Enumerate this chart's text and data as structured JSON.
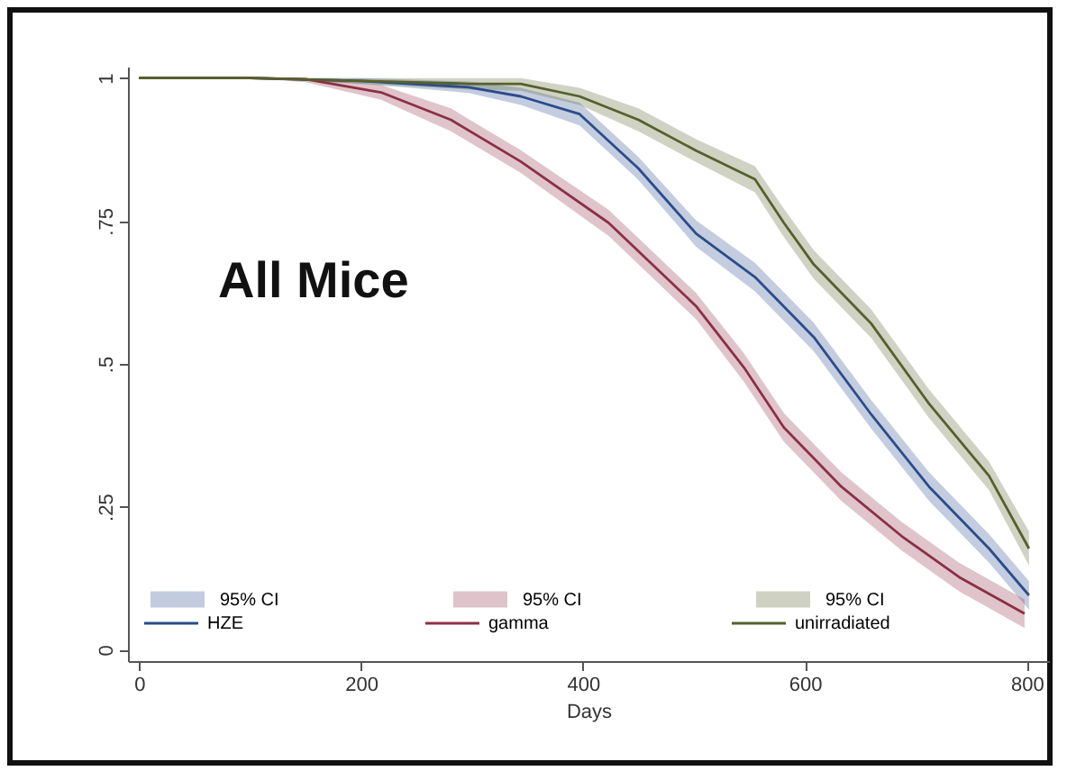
{
  "chart_data": {
    "type": "line",
    "title": "All Mice",
    "xlabel": "Days",
    "annotations": [
      "95% CI",
      "95% CI",
      "95% CI"
    ],
    "xlim": [
      -10,
      820
    ],
    "xticks": [
      0,
      200,
      400,
      600,
      800
    ],
    "ylim": [
      -0.02,
      1.02
    ],
    "yticks": [
      0,
      {
        "value": 0.25,
        "label": ".25"
      },
      {
        "value": 0.5,
        "label": ".5"
      },
      {
        "value": 0.75,
        "label": ".75"
      },
      1
    ],
    "grid": false,
    "legend": "bottom",
    "series": [
      {
        "name": "HZE",
        "color": "#2b4c8c",
        "x": [
          0,
          100,
          200,
          297,
          344,
          397,
          450,
          502,
          555,
          608,
          660,
          712,
          766,
          802
        ],
        "values": [
          1,
          1,
          0.995,
          0.984,
          0.968,
          0.937,
          0.842,
          0.728,
          0.652,
          0.547,
          0.411,
          0.285,
          0.177,
          0.095
        ],
        "lower": [
          1,
          1,
          0.99,
          0.974,
          0.953,
          0.917,
          0.822,
          0.705,
          0.627,
          0.522,
          0.386,
          0.26,
          0.152,
          0.07
        ],
        "upper": [
          1,
          1,
          1,
          0.994,
          0.983,
          0.957,
          0.862,
          0.751,
          0.677,
          0.572,
          0.436,
          0.31,
          0.202,
          0.12
        ]
      },
      {
        "name": "gamma",
        "color": "#8c2f45",
        "x": [
          0,
          100,
          150,
          218,
          281,
          344,
          423,
          502,
          545,
          581,
          633,
          687,
          739,
          798
        ],
        "values": [
          1,
          1,
          0.998,
          0.975,
          0.927,
          0.854,
          0.747,
          0.601,
          0.494,
          0.389,
          0.285,
          0.199,
          0.127,
          0.063
        ],
        "lower": [
          1,
          1,
          0.993,
          0.962,
          0.907,
          0.834,
          0.724,
          0.578,
          0.469,
          0.364,
          0.26,
          0.174,
          0.102,
          0.038
        ],
        "upper": [
          1,
          1,
          1,
          0.988,
          0.947,
          0.874,
          0.77,
          0.624,
          0.519,
          0.414,
          0.31,
          0.224,
          0.152,
          0.088
        ]
      },
      {
        "name": "unirradiated",
        "color": "#55602c",
        "x": [
          0,
          100,
          200,
          297,
          344,
          397,
          450,
          502,
          555,
          581,
          608,
          660,
          712,
          766,
          802
        ],
        "values": [
          1,
          1,
          0.995,
          0.99,
          0.99,
          0.968,
          0.927,
          0.873,
          0.823,
          0.747,
          0.674,
          0.57,
          0.43,
          0.304,
          0.177
        ],
        "lower": [
          1,
          1,
          0.99,
          0.98,
          0.978,
          0.953,
          0.907,
          0.853,
          0.8,
          0.722,
          0.649,
          0.545,
          0.405,
          0.279,
          0.147
        ],
        "upper": [
          1,
          1,
          1,
          1,
          1,
          0.983,
          0.947,
          0.893,
          0.846,
          0.772,
          0.699,
          0.595,
          0.455,
          0.329,
          0.207
        ]
      }
    ]
  }
}
